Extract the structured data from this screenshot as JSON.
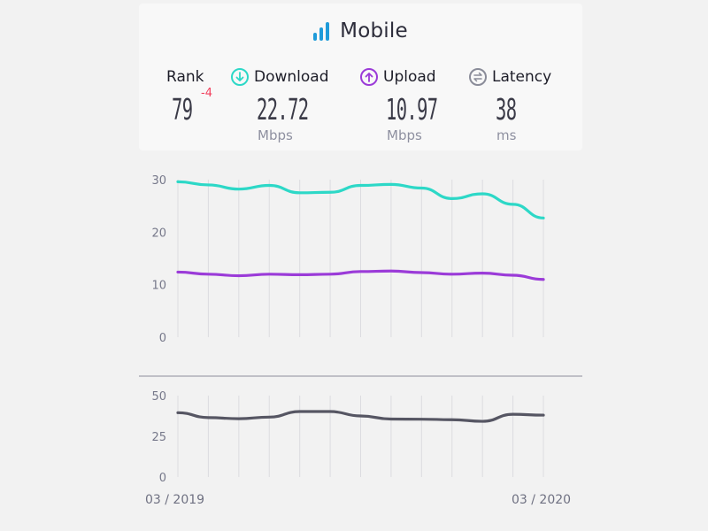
{
  "header": {
    "title": "Mobile",
    "icon": "signal-bars-icon"
  },
  "metrics": {
    "rank": {
      "label": "Rank",
      "value": "79",
      "delta": "-4"
    },
    "download": {
      "label": "Download",
      "value": "22.72",
      "unit": "Mbps",
      "icon": "download-arrow-icon",
      "color": "#2dd8c7"
    },
    "upload": {
      "label": "Upload",
      "value": "10.97",
      "unit": "Mbps",
      "icon": "upload-arrow-icon",
      "color": "#9b3bd8"
    },
    "latency": {
      "label": "Latency",
      "value": "38",
      "unit": "ms",
      "icon": "latency-arrows-icon",
      "color": "#8a8c99"
    }
  },
  "chart_data": [
    {
      "type": "line",
      "x": [
        "03/2019",
        "04/2019",
        "05/2019",
        "06/2019",
        "07/2019",
        "08/2019",
        "09/2019",
        "10/2019",
        "11/2019",
        "12/2019",
        "01/2020",
        "02/2020",
        "03/2020"
      ],
      "series": [
        {
          "name": "Download",
          "color": "#2dd8c7",
          "values": [
            29.6,
            29.0,
            28.2,
            28.9,
            27.5,
            27.6,
            28.9,
            29.1,
            28.4,
            26.4,
            27.3,
            25.3,
            22.7
          ]
        },
        {
          "name": "Upload",
          "color": "#9b3bd8",
          "values": [
            12.4,
            12.0,
            11.7,
            12.0,
            11.9,
            12.0,
            12.5,
            12.6,
            12.3,
            12.0,
            12.2,
            11.8,
            11.0
          ]
        }
      ],
      "yticks": [
        "0",
        "10",
        "20",
        "30"
      ],
      "ylim": [
        0,
        30
      ],
      "grid": "vertical"
    },
    {
      "type": "line",
      "x": [
        "03/2019",
        "04/2019",
        "05/2019",
        "06/2019",
        "07/2019",
        "08/2019",
        "09/2019",
        "10/2019",
        "11/2019",
        "12/2019",
        "01/2020",
        "02/2020",
        "03/2020"
      ],
      "series": [
        {
          "name": "Latency",
          "color": "#565663",
          "values": [
            39.5,
            36.5,
            35.8,
            36.8,
            40.2,
            40.2,
            37.5,
            35.6,
            35.5,
            35.2,
            34.2,
            38.5,
            38.0
          ]
        }
      ],
      "yticks": [
        "0",
        "25",
        "50"
      ],
      "ylim": [
        0,
        50
      ],
      "grid": "vertical"
    }
  ],
  "x_axis": {
    "start_label": "03 / 2019",
    "end_label": "03 / 2020"
  }
}
